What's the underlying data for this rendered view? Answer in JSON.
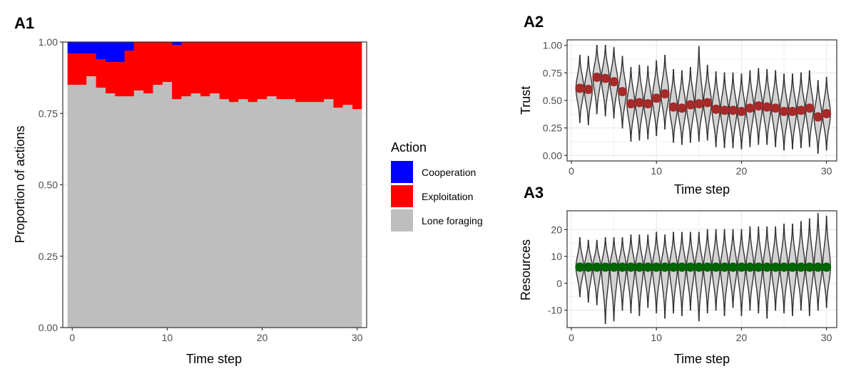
{
  "chart_data": [
    {
      "panel": "A1",
      "type": "area",
      "xlabel": "Time step",
      "ylabel": "Proportion of actions",
      "xlim": [
        -1,
        31
      ],
      "ylim": [
        0,
        1
      ],
      "x_ticks": [
        0,
        10,
        20,
        30
      ],
      "y_ticks": [
        0.0,
        0.25,
        0.5,
        0.75,
        1.0
      ],
      "grid": true,
      "legend": {
        "title": "Action",
        "placement": "right",
        "entries": [
          {
            "label": "Cooperation",
            "color": "#0000ff"
          },
          {
            "label": "Exploitation",
            "color": "#ff0000"
          },
          {
            "label": "Lone foraging",
            "color": "#bebebe"
          }
        ]
      },
      "x": [
        0,
        1,
        2,
        3,
        4,
        5,
        6,
        7,
        8,
        9,
        10,
        11,
        12,
        13,
        14,
        15,
        16,
        17,
        18,
        19,
        20,
        21,
        22,
        23,
        24,
        25,
        26,
        27,
        28,
        29,
        30
      ],
      "series": [
        {
          "name": "Lone foraging",
          "color": "#bebebe",
          "values": [
            0.85,
            0.85,
            0.88,
            0.84,
            0.82,
            0.81,
            0.81,
            0.83,
            0.82,
            0.85,
            0.86,
            0.8,
            0.81,
            0.82,
            0.81,
            0.82,
            0.8,
            0.79,
            0.8,
            0.79,
            0.8,
            0.81,
            0.8,
            0.8,
            0.79,
            0.79,
            0.79,
            0.8,
            0.77,
            0.78,
            0.765
          ]
        },
        {
          "name": "Exploitation",
          "color": "#ff0000",
          "values": [
            0.11,
            0.11,
            0.08,
            0.1,
            0.11,
            0.12,
            0.16,
            0.17,
            0.18,
            0.15,
            0.14,
            0.19,
            0.19,
            0.18,
            0.19,
            0.18,
            0.2,
            0.21,
            0.2,
            0.21,
            0.2,
            0.19,
            0.2,
            0.2,
            0.21,
            0.21,
            0.21,
            0.2,
            0.23,
            0.22,
            0.235
          ]
        },
        {
          "name": "Cooperation",
          "color": "#0000ff",
          "values": [
            0.04,
            0.04,
            0.04,
            0.06,
            0.07,
            0.07,
            0.03,
            0.0,
            0.0,
            0.0,
            0.0,
            0.01,
            0.0,
            0.0,
            0.0,
            0.0,
            0.0,
            0.0,
            0.0,
            0.0,
            0.0,
            0.0,
            0.0,
            0.0,
            0.0,
            0.0,
            0.0,
            0.0,
            0.0,
            0.0,
            0.0
          ]
        }
      ]
    },
    {
      "panel": "A2",
      "type": "violin",
      "xlabel": "Time step",
      "ylabel": "Trust",
      "xlim": [
        -0.5,
        31.2
      ],
      "ylim": [
        -0.05,
        1.05
      ],
      "x_ticks": [
        0,
        10,
        20,
        30
      ],
      "y_ticks": [
        0.0,
        0.25,
        0.5,
        0.75,
        1.0
      ],
      "grid": true,
      "point_color": "#a52a2a",
      "x": [
        1,
        2,
        3,
        4,
        5,
        6,
        7,
        8,
        9,
        10,
        11,
        12,
        13,
        14,
        15,
        16,
        17,
        18,
        19,
        20,
        21,
        22,
        23,
        24,
        25,
        26,
        27,
        28,
        29,
        30
      ],
      "mean": [
        0.61,
        0.6,
        0.71,
        0.7,
        0.67,
        0.58,
        0.47,
        0.48,
        0.47,
        0.52,
        0.56,
        0.44,
        0.43,
        0.46,
        0.47,
        0.48,
        0.42,
        0.41,
        0.41,
        0.4,
        0.43,
        0.45,
        0.44,
        0.43,
        0.4,
        0.4,
        0.41,
        0.43,
        0.35,
        0.38
      ],
      "min": [
        0.3,
        0.28,
        0.38,
        0.36,
        0.34,
        0.25,
        0.13,
        0.14,
        0.15,
        0.18,
        0.24,
        0.12,
        0.1,
        0.12,
        0.13,
        0.14,
        0.08,
        0.07,
        0.07,
        0.06,
        0.08,
        0.1,
        0.1,
        0.08,
        0.05,
        0.06,
        0.07,
        0.08,
        0.02,
        0.05
      ],
      "max": [
        0.91,
        0.9,
        1.0,
        1.0,
        0.98,
        0.9,
        0.8,
        0.82,
        0.81,
        0.86,
        0.91,
        0.78,
        0.77,
        0.8,
        0.99,
        0.82,
        0.76,
        0.75,
        0.75,
        0.74,
        0.77,
        0.79,
        0.78,
        0.77,
        0.74,
        0.74,
        0.75,
        0.77,
        0.68,
        0.71
      ]
    },
    {
      "panel": "A3",
      "type": "violin",
      "xlabel": "Time step",
      "ylabel": "Resources",
      "xlim": [
        -0.5,
        31.2
      ],
      "ylim": [
        -16.5,
        27
      ],
      "x_ticks": [
        0,
        10,
        20,
        30
      ],
      "y_ticks": [
        -10,
        0,
        10,
        20
      ],
      "grid": true,
      "point_color": "#006400",
      "x": [
        1,
        2,
        3,
        4,
        5,
        6,
        7,
        8,
        9,
        10,
        11,
        12,
        13,
        14,
        15,
        16,
        17,
        18,
        19,
        20,
        21,
        22,
        23,
        24,
        25,
        26,
        27,
        28,
        29,
        30
      ],
      "mean": [
        6,
        6,
        6,
        6,
        6,
        6,
        6,
        6,
        6,
        6,
        6,
        6,
        6,
        6,
        6,
        6,
        6,
        6,
        6,
        6,
        6,
        6,
        6,
        6,
        6,
        6,
        6,
        6,
        6,
        6
      ],
      "min": [
        -5,
        -7,
        -8,
        -15,
        -14,
        -10,
        -11,
        -12,
        -9,
        -11,
        -13,
        -11,
        -12,
        -10,
        -14,
        -11,
        -10,
        -12,
        -9,
        -12,
        -10,
        -11,
        -13,
        -10,
        -11,
        -12,
        -10,
        -12,
        -10,
        -9
      ],
      "max": [
        17,
        16,
        16,
        17,
        17,
        17,
        18,
        18,
        18,
        19,
        18,
        19,
        19,
        19,
        19,
        20,
        20,
        20,
        20,
        20,
        21,
        21,
        21,
        21,
        22,
        22,
        23,
        24,
        26,
        25
      ]
    }
  ]
}
